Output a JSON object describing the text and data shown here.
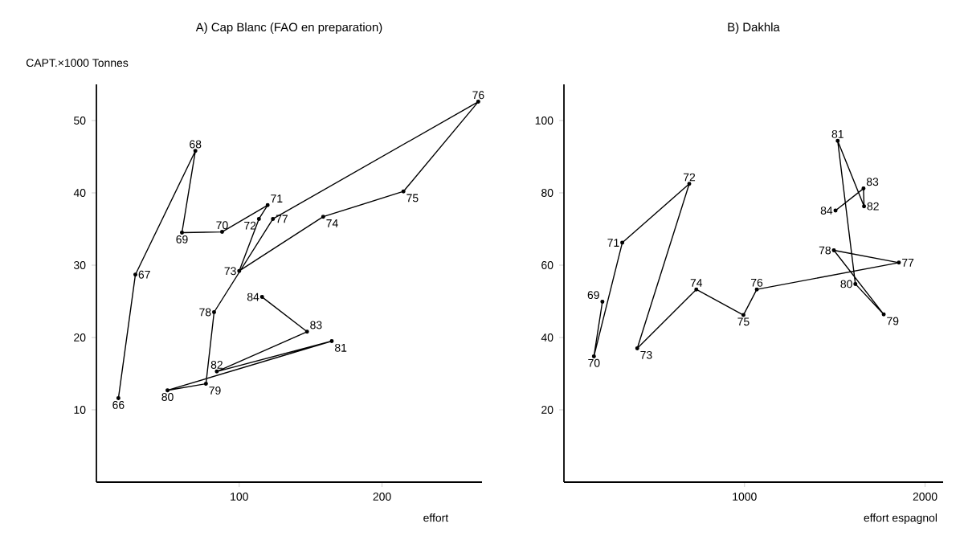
{
  "chart_data": [
    {
      "type": "line",
      "title": "A)   Cap Blanc  (FAO en preparation)",
      "xlabel": "effort",
      "ylabel": "CAPT.×1000 Tonnes",
      "color": "#000000",
      "marker": "circle",
      "x": [
        15.4,
        27.3,
        69.3,
        59.9,
        88,
        119.9,
        113.8,
        100,
        158.8,
        215,
        267.4,
        123.6,
        82.4,
        76.7,
        49.8,
        164.8,
        84.3,
        147.5,
        116
      ],
      "values": [
        11.6,
        28.7,
        45.8,
        34.5,
        34.6,
        38.3,
        36.4,
        29.2,
        36.7,
        40.2,
        52.6,
        36.4,
        23.5,
        13.6,
        12.7,
        19.5,
        15.3,
        20.8,
        25.6
      ],
      "xlim": [
        0,
        270
      ],
      "ylim": [
        0,
        55
      ],
      "xticks": [
        100,
        200
      ],
      "yticks": [
        10,
        20,
        30,
        40,
        50
      ],
      "annotations": [
        {
          "text": "66",
          "x": 15.4,
          "y": 11.6
        },
        {
          "text": "67",
          "x": 27.3,
          "y": 28.7
        },
        {
          "text": "68",
          "x": 69.3,
          "y": 45.8
        },
        {
          "text": "69",
          "x": 59.9,
          "y": 34.5
        },
        {
          "text": "70",
          "x": 88,
          "y": 34.6
        },
        {
          "text": "71",
          "x": 119.9,
          "y": 38.3
        },
        {
          "text": "72",
          "x": 113.8,
          "y": 36.4
        },
        {
          "text": "73",
          "x": 100,
          "y": 29.2
        },
        {
          "text": "74",
          "x": 158.8,
          "y": 36.7
        },
        {
          "text": "75",
          "x": 215,
          "y": 40.2
        },
        {
          "text": "76",
          "x": 267.4,
          "y": 52.6
        },
        {
          "text": "77",
          "x": 123.6,
          "y": 36.4
        },
        {
          "text": "78",
          "x": 82.4,
          "y": 23.5
        },
        {
          "text": "79",
          "x": 76.7,
          "y": 13.6
        },
        {
          "text": "80",
          "x": 49.8,
          "y": 12.7
        },
        {
          "text": "81",
          "x": 164.8,
          "y": 19.5
        },
        {
          "text": "82",
          "x": 84.3,
          "y": 15.3
        },
        {
          "text": "83",
          "x": 147.5,
          "y": 20.8
        },
        {
          "text": "84",
          "x": 116,
          "y": 25.6
        }
      ]
    },
    {
      "type": "line",
      "title": "B)   Dakhla",
      "xlabel": "effort espagnol",
      "color": "#000000",
      "marker": "circle",
      "x": [
        213,
        166,
        323,
        694,
        406,
        733,
        994,
        1068,
        1855,
        1495,
        1771,
        1614,
        1516,
        1662,
        1659,
        1504
      ],
      "values": [
        49.9,
        34.8,
        66.2,
        82.5,
        37,
        53.3,
        46.2,
        53.3,
        60.7,
        64.1,
        46.4,
        54.8,
        94.4,
        76.3,
        81.2,
        75.1
      ],
      "xlim": [
        0,
        2100
      ],
      "ylim": [
        0,
        110
      ],
      "xticks": [
        1000,
        2000
      ],
      "yticks": [
        20,
        40,
        60,
        80,
        100
      ],
      "annotations": [
        {
          "text": "69",
          "x": 213,
          "y": 49.9
        },
        {
          "text": "70",
          "x": 166,
          "y": 34.8
        },
        {
          "text": "71",
          "x": 323,
          "y": 66.2
        },
        {
          "text": "72",
          "x": 694,
          "y": 82.5
        },
        {
          "text": "73",
          "x": 406,
          "y": 37
        },
        {
          "text": "74",
          "x": 733,
          "y": 53.3
        },
        {
          "text": "75",
          "x": 994,
          "y": 46.2
        },
        {
          "text": "76",
          "x": 1068,
          "y": 53.3
        },
        {
          "text": "77",
          "x": 1855,
          "y": 60.7
        },
        {
          "text": "78",
          "x": 1495,
          "y": 64.1
        },
        {
          "text": "79",
          "x": 1771,
          "y": 46.4
        },
        {
          "text": "80",
          "x": 1614,
          "y": 54.8
        },
        {
          "text": "81",
          "x": 1516,
          "y": 94.4
        },
        {
          "text": "82",
          "x": 1662,
          "y": 76.3
        },
        {
          "text": "83",
          "x": 1659,
          "y": 81.2
        },
        {
          "text": "84",
          "x": 1504,
          "y": 75.1
        }
      ]
    }
  ]
}
